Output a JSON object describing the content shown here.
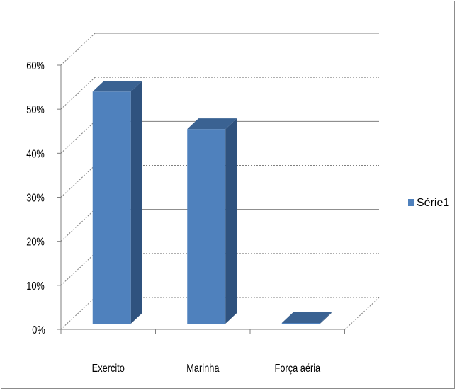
{
  "chart_data": {
    "type": "bar",
    "categories": [
      "Exercito",
      "Marinha",
      "Força aéria"
    ],
    "series": [
      {
        "name": "Série1",
        "values": [
          0.54,
          0.455,
          0.0
        ]
      }
    ],
    "ylim": [
      0,
      0.6
    ],
    "y_ticks": [
      "0%",
      "10%",
      "20%",
      "30%",
      "40%",
      "50%",
      "60%"
    ],
    "grid": true,
    "legend_position": "right",
    "colors": {
      "bar_front": "#4f81bd",
      "bar_side": "#2f527e",
      "bar_top": "#3a6292",
      "grid": "#7f7f7f",
      "border": "#8c8c8c"
    }
  }
}
